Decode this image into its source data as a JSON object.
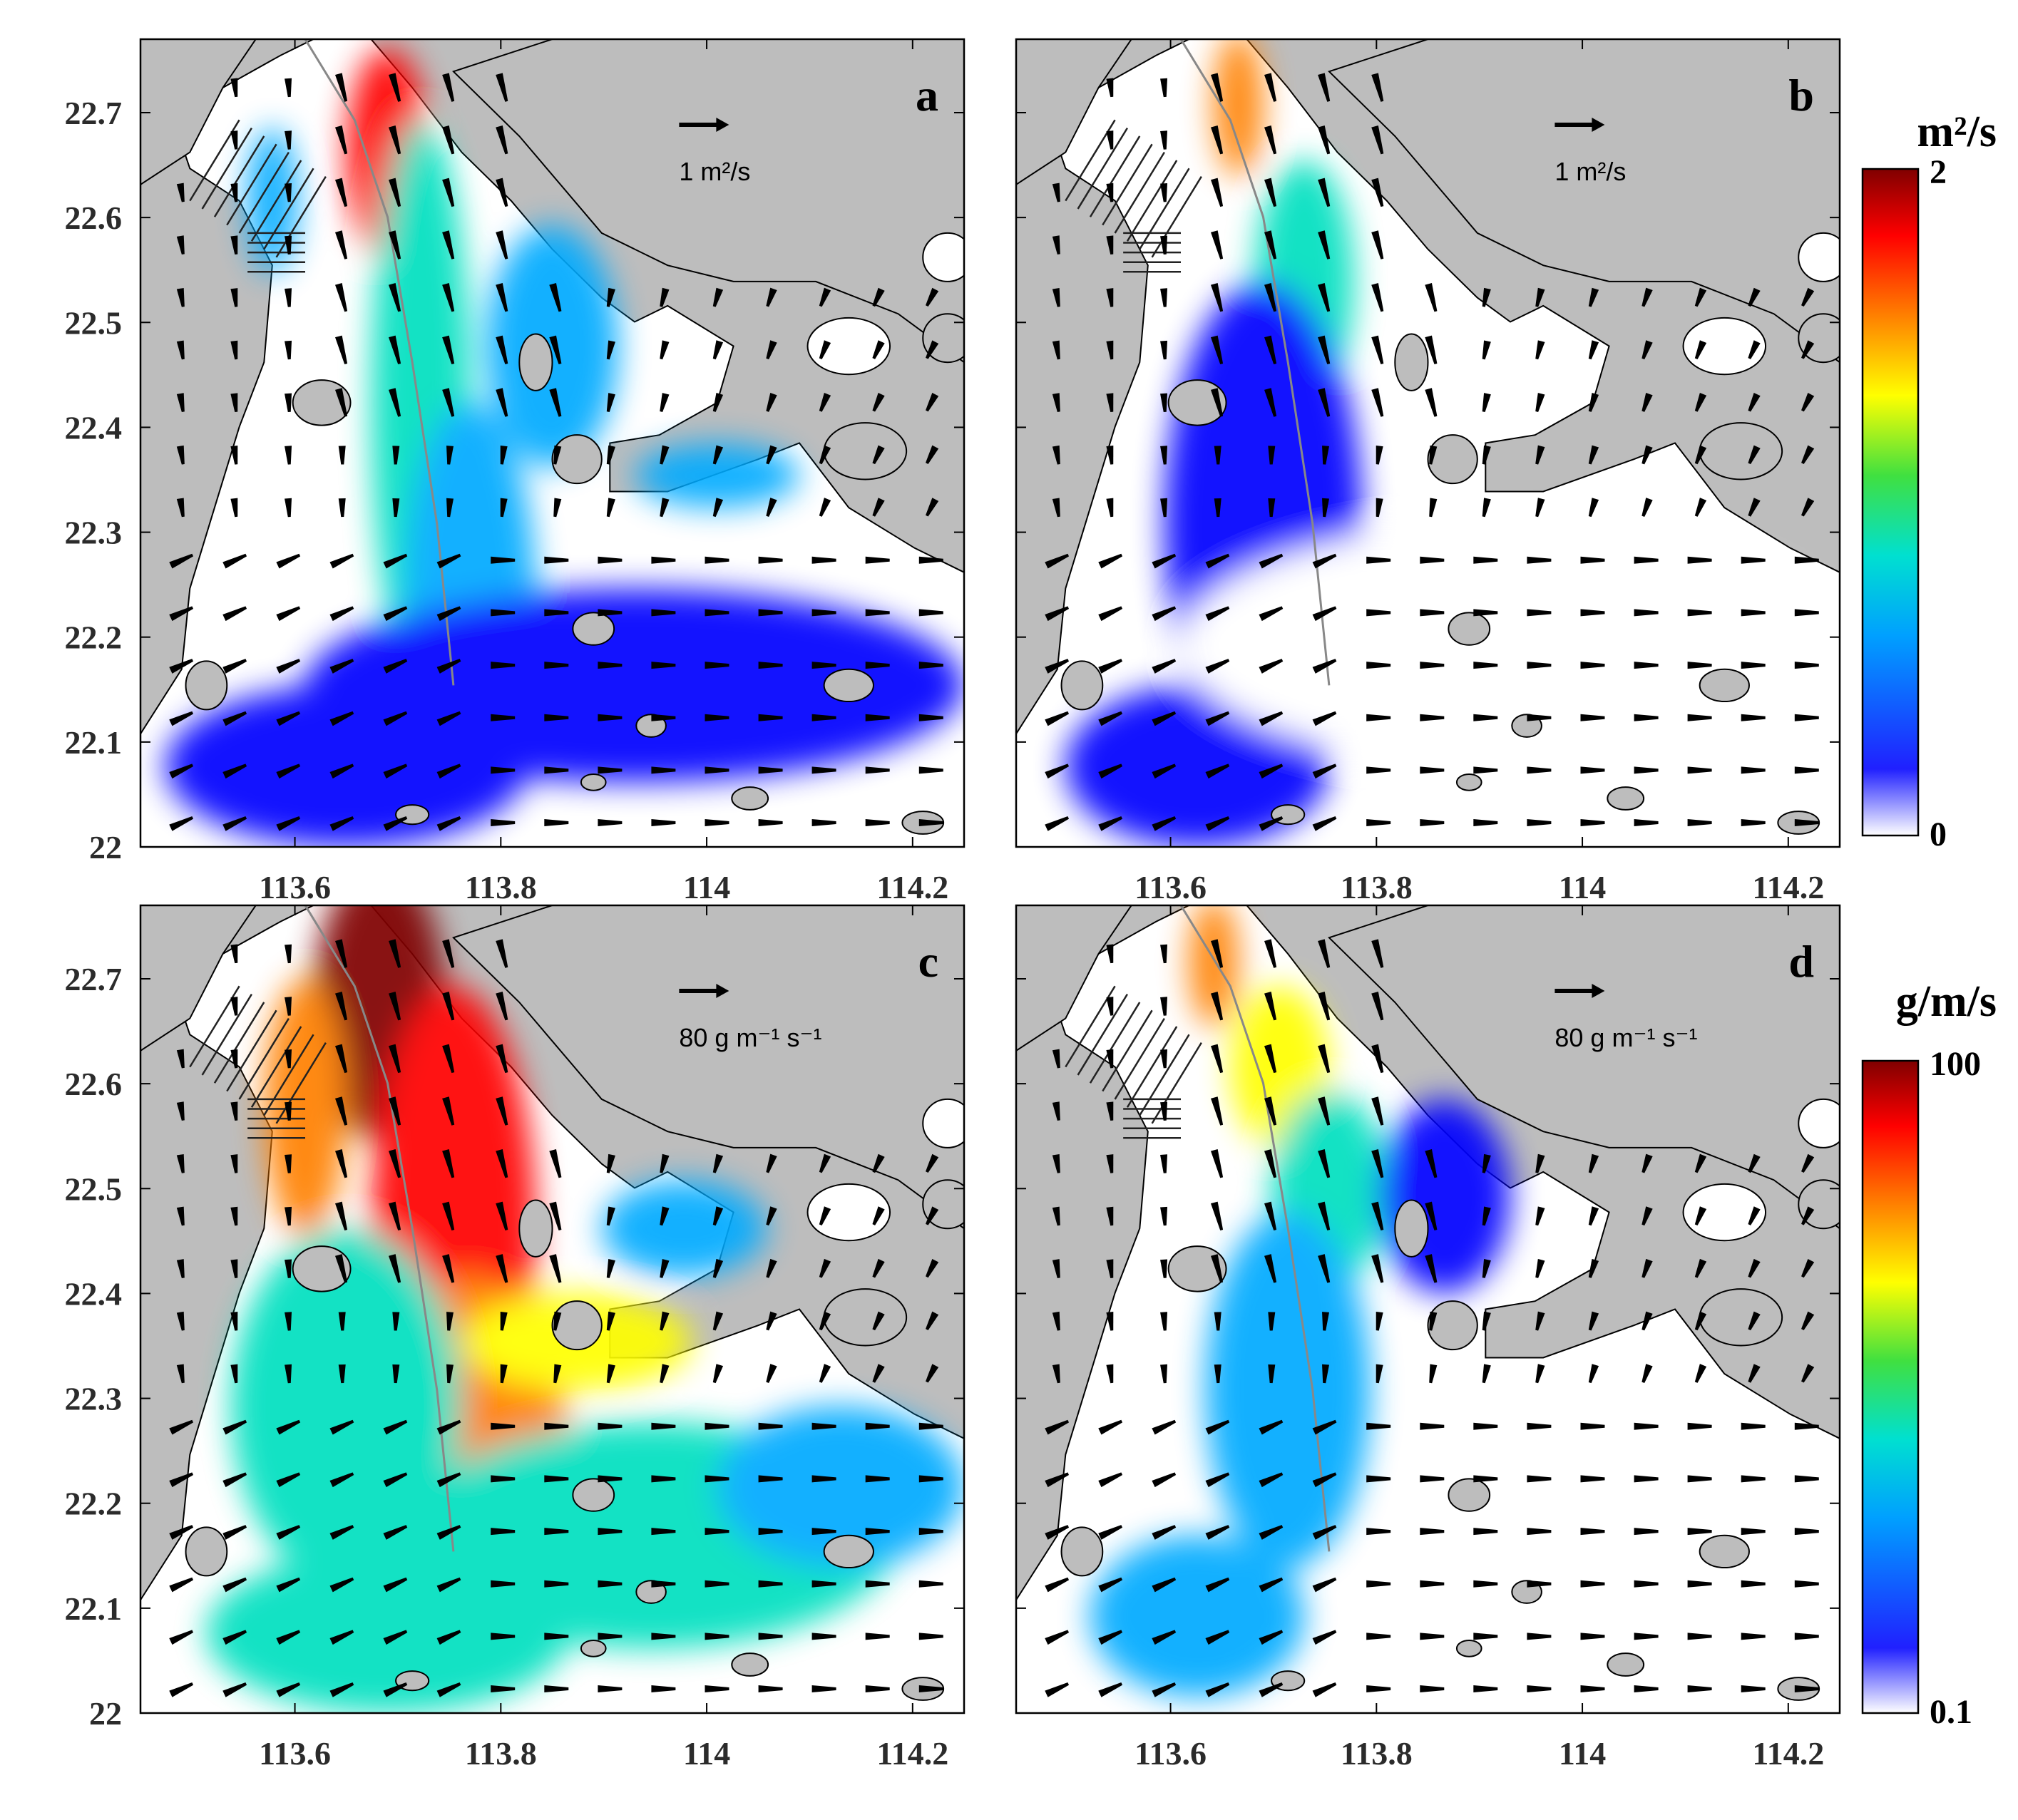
{
  "chart_data": [
    {
      "type": "heatmap",
      "panel_label": "a",
      "reference_vector_label": "1 m²/s",
      "colorbar": "top",
      "xlim": [
        113.45,
        114.25
      ],
      "ylim": [
        22.0,
        22.77
      ],
      "xticks": [
        "113.6",
        "113.8",
        "114",
        "114.2"
      ],
      "yticks": [
        "22",
        "22.1",
        "22.2",
        "22.3",
        "22.4",
        "22.5",
        "22.6",
        "22.7"
      ],
      "vectors": "quiver",
      "intensity": "high"
    },
    {
      "type": "heatmap",
      "panel_label": "b",
      "reference_vector_label": "1 m²/s",
      "colorbar": "top",
      "xlim": [
        113.45,
        114.25
      ],
      "ylim": [
        22.0,
        22.77
      ],
      "xticks": [
        "113.6",
        "113.8",
        "114",
        "114.2"
      ],
      "yticks": [],
      "vectors": "quiver",
      "intensity": "low"
    },
    {
      "type": "heatmap",
      "panel_label": "c",
      "reference_vector_label": "80 g m⁻¹ s⁻¹",
      "colorbar": "bottom",
      "xlim": [
        113.45,
        114.25
      ],
      "ylim": [
        22.0,
        22.77
      ],
      "xticks": [
        "113.6",
        "113.8",
        "114",
        "114.2"
      ],
      "yticks": [
        "22",
        "22.1",
        "22.2",
        "22.3",
        "22.4",
        "22.5",
        "22.6",
        "22.7"
      ],
      "vectors": "quiver",
      "intensity": "very-high"
    },
    {
      "type": "heatmap",
      "panel_label": "d",
      "reference_vector_label": "80 g m⁻¹ s⁻¹",
      "colorbar": "bottom",
      "xlim": [
        113.45,
        114.25
      ],
      "ylim": [
        22.0,
        22.77
      ],
      "xticks": [
        "113.6",
        "113.8",
        "114",
        "114.2"
      ],
      "yticks": [],
      "vectors": "quiver",
      "intensity": "moderate"
    }
  ],
  "colorbars": {
    "top": {
      "unit": "m²/s",
      "max": "2",
      "min": "0"
    },
    "bottom": {
      "unit": "g/m/s",
      "max": "100",
      "min": "0.1"
    }
  },
  "colormap": [
    "#ffffff",
    "#0000ff",
    "#00aaff",
    "#00e0c0",
    "#40e040",
    "#ffff00",
    "#ff8000",
    "#ff0000",
    "#800000"
  ],
  "land_color": "#bdbdbd"
}
